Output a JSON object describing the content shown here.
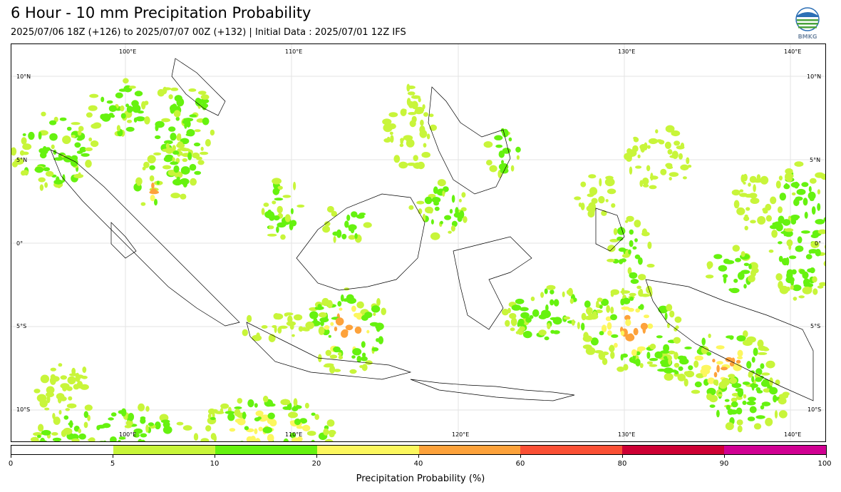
{
  "title": "6 Hour - 10 mm Precipitation Probability",
  "subtitle": "2025/07/06 18Z (+126) to 2025/07/07 00Z (+132) | Initial Data : 2025/07/01 12Z IFS",
  "logo": {
    "icon": "bmkg-logo",
    "text": "BMKG"
  },
  "map": {
    "lon_labels_top": [
      "100°E",
      "110°E",
      "130°E",
      "140°E"
    ],
    "lon_labels_bottom": [
      "100°E",
      "110°E",
      "120°E",
      "130°E",
      "140°E"
    ],
    "lat_labels_left": [
      "10°N",
      "5°N",
      "0°",
      "5°S",
      "10°S"
    ],
    "lat_labels_right": [
      "10°N",
      "5°N",
      "0°",
      "5°S",
      "10°S"
    ]
  },
  "colorbar": {
    "title": "Precipitation Probability (%)",
    "ticks": [
      "0",
      "5",
      "10",
      "20",
      "40",
      "60",
      "80",
      "90",
      "100"
    ],
    "colors": [
      "#ffffff",
      "#c8f53a",
      "#66f20f",
      "#fcf75e",
      "#fda23b",
      "#fa5035",
      "#cd0034",
      "#d00092"
    ]
  }
}
